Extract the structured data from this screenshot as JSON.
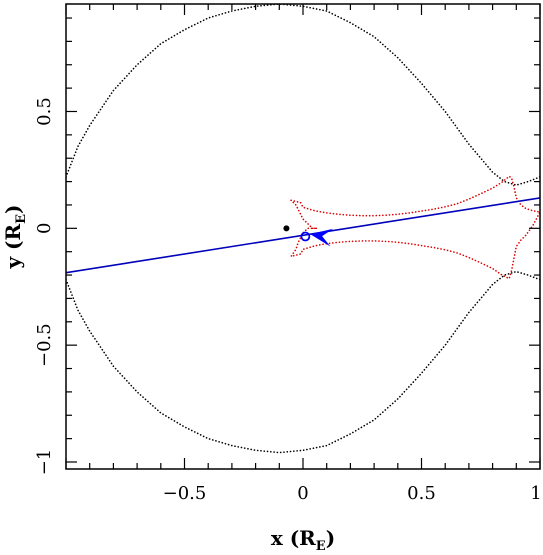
{
  "chart_data": {
    "type": "line",
    "xlabel": {
      "main": "x (R",
      "sub": "E",
      "close": ")"
    },
    "ylabel": {
      "main": "y (R",
      "sub": "E",
      "close": ")"
    },
    "xlim": [
      -1,
      1
    ],
    "ylim": [
      -1.03,
      0.96
    ],
    "xticks_major": [
      -1,
      -0.5,
      0,
      0.5,
      1
    ],
    "xtick_labels": [
      "−0.5",
      "0",
      "0.5",
      "1"
    ],
    "xtick_label_values": [
      -0.5,
      0,
      0.5,
      1
    ],
    "yticks_major": [
      -1,
      -0.5,
      0,
      0.5
    ],
    "ytick_labels": [
      "−1",
      "−0.5",
      "0",
      "0.5"
    ],
    "minor_step": 0.1,
    "grid": false,
    "colors": {
      "critical": "#000000",
      "caustic": "#dd0000",
      "trajectory": "#0000bb",
      "lens": "#000000"
    },
    "series": [
      {
        "style": "dotted",
        "color": "#000000",
        "x": [
          -1.0,
          -0.95,
          -0.9,
          -0.8,
          -0.7,
          -0.6,
          -0.5,
          -0.4,
          -0.3,
          -0.2,
          -0.1,
          0.0,
          0.1,
          0.2,
          0.3,
          0.4,
          0.5,
          0.6,
          0.7,
          0.75,
          0.8,
          0.85,
          0.9,
          0.95,
          1.0
        ],
        "y": [
          0.22,
          0.35,
          0.44,
          0.59,
          0.7,
          0.79,
          0.85,
          0.9,
          0.93,
          0.95,
          0.96,
          0.95,
          0.93,
          0.88,
          0.82,
          0.73,
          0.62,
          0.5,
          0.36,
          0.3,
          0.24,
          0.2,
          0.185,
          0.2,
          0.22
        ]
      },
      {
        "style": "dotted",
        "color": "#000000",
        "x": [
          -1.0,
          -0.95,
          -0.9,
          -0.8,
          -0.7,
          -0.6,
          -0.5,
          -0.4,
          -0.3,
          -0.2,
          -0.1,
          0.0,
          0.1,
          0.2,
          0.3,
          0.4,
          0.5,
          0.6,
          0.7,
          0.75,
          0.8,
          0.85,
          0.9,
          0.95,
          1.0
        ],
        "y": [
          -0.22,
          -0.35,
          -0.44,
          -0.59,
          -0.7,
          -0.79,
          -0.85,
          -0.9,
          -0.93,
          -0.95,
          -0.96,
          -0.95,
          -0.93,
          -0.88,
          -0.82,
          -0.73,
          -0.62,
          -0.5,
          -0.36,
          -0.3,
          -0.24,
          -0.2,
          -0.185,
          -0.2,
          -0.22
        ]
      },
      {
        "style": "dotted",
        "color": "#dd0000",
        "x": [
          -0.05,
          -0.01,
          0.0,
          0.05,
          0.1,
          0.15,
          0.2,
          0.25,
          0.3,
          0.35,
          0.4,
          0.45,
          0.5,
          0.55,
          0.6,
          0.65,
          0.7,
          0.75,
          0.8,
          0.84,
          0.87,
          0.88,
          0.89,
          0.9,
          0.92,
          0.94,
          0.97,
          1.0,
          0.97,
          0.94,
          0.92,
          0.9,
          0.89,
          0.88,
          0.87,
          0.84,
          0.8,
          0.75,
          0.7,
          0.65,
          0.6,
          0.55,
          0.5,
          0.45,
          0.4,
          0.35,
          0.3,
          0.25,
          0.2,
          0.15,
          0.1,
          0.05,
          0.0,
          -0.01,
          -0.05,
          -0.03,
          -0.02,
          -0.01,
          0.0,
          0.02,
          0.04,
          0.06,
          0.04,
          0.02,
          0.0,
          -0.01,
          -0.02,
          -0.03,
          -0.05
        ],
        "y": [
          0.12,
          0.11,
          0.09,
          0.075,
          0.066,
          0.06,
          0.056,
          0.054,
          0.054,
          0.056,
          0.06,
          0.066,
          0.074,
          0.082,
          0.092,
          0.105,
          0.125,
          0.148,
          0.172,
          0.198,
          0.222,
          0.215,
          0.18,
          0.13,
          0.1,
          0.085,
          0.075,
          0.07,
          0.012,
          -0.03,
          -0.05,
          -0.078,
          -0.13,
          -0.18,
          -0.215,
          -0.2,
          -0.172,
          -0.148,
          -0.125,
          -0.105,
          -0.092,
          -0.082,
          -0.074,
          -0.066,
          -0.06,
          -0.056,
          -0.054,
          -0.054,
          -0.056,
          -0.06,
          -0.066,
          -0.075,
          -0.09,
          -0.11,
          -0.12,
          -0.09,
          -0.06,
          -0.04,
          -0.02,
          0.0,
          0.0,
          0.0,
          0.0,
          0.02,
          0.04,
          0.06,
          0.08,
          0.1,
          0.12
        ]
      },
      {
        "style": "solid",
        "color": "#0000bb",
        "x": [
          -1.0,
          1.0
        ],
        "y": [
          -0.19,
          0.13
        ]
      }
    ],
    "markers": [
      {
        "kind": "filled-dot",
        "color": "#000000",
        "x": -0.07,
        "y": 0.0
      },
      {
        "kind": "open-circle",
        "color": "#0000ff",
        "x": 0.01,
        "y": -0.035
      },
      {
        "kind": "arrowhead",
        "color": "#0000ff",
        "x": 0.03,
        "y": -0.025,
        "direction_deg": 171
      }
    ]
  }
}
